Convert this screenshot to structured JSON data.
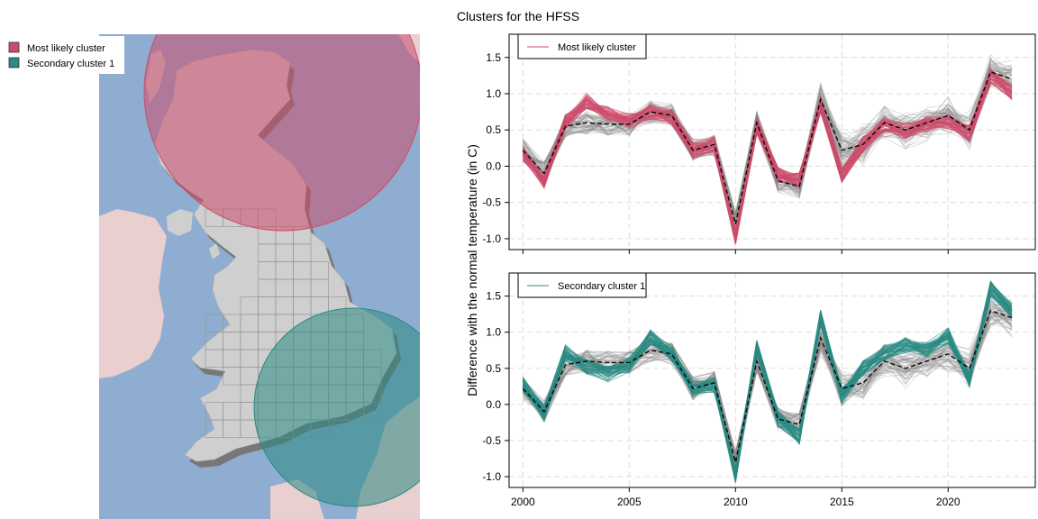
{
  "title": "Clusters for the HFSS",
  "map": {
    "legend": [
      {
        "label": "Most likely cluster",
        "color": "#cc4c6c"
      },
      {
        "label": "Secondary cluster 1",
        "color": "#2a8a84"
      }
    ],
    "colors": {
      "sea": "#8eadd0",
      "land": "#cfcfcf",
      "foreign_land": "#e9cfcf",
      "grid": "#9a9a9a"
    }
  },
  "ylabel": "Difference with the normal temperature (in C)",
  "chart_data": [
    {
      "type": "line",
      "legend": "Most likely cluster",
      "legend_position": "top-left",
      "color": "#cc4c6c",
      "background_color": "#8a8a8a",
      "x": [
        2000,
        2001,
        2002,
        2003,
        2004,
        2005,
        2006,
        2007,
        2008,
        2009,
        2010,
        2011,
        2012,
        2013,
        2014,
        2015,
        2016,
        2017,
        2018,
        2019,
        2020,
        2021,
        2022,
        2023
      ],
      "reference": [
        0.22,
        -0.1,
        0.55,
        0.6,
        0.58,
        0.58,
        0.75,
        0.7,
        0.22,
        0.3,
        -0.8,
        0.6,
        -0.2,
        -0.28,
        0.92,
        0.22,
        0.3,
        0.6,
        0.5,
        0.6,
        0.7,
        0.5,
        1.3,
        1.2
      ],
      "cluster_mean": [
        0.18,
        -0.2,
        0.6,
        0.9,
        0.72,
        0.62,
        0.75,
        0.68,
        0.22,
        0.3,
        -0.98,
        0.55,
        -0.12,
        -0.2,
        0.85,
        -0.12,
        0.3,
        0.58,
        0.48,
        0.58,
        0.62,
        0.45,
        1.25,
        1.02
      ],
      "xticks": [
        2000,
        2005,
        2010,
        2015,
        2020
      ],
      "yticks": [
        -1.0,
        -0.5,
        0.0,
        0.5,
        1.0,
        1.5
      ],
      "xlim": [
        1999.35,
        2024.1
      ],
      "ylim": [
        -1.15,
        1.82
      ],
      "grid": true
    },
    {
      "type": "line",
      "legend": "Secondary cluster 1",
      "legend_position": "top-left",
      "color": "#2a8a84",
      "background_color": "#8a8a8a",
      "x": [
        2000,
        2001,
        2002,
        2003,
        2004,
        2005,
        2006,
        2007,
        2008,
        2009,
        2010,
        2011,
        2012,
        2013,
        2014,
        2015,
        2016,
        2017,
        2018,
        2019,
        2020,
        2021,
        2022,
        2023
      ],
      "reference": [
        0.22,
        -0.1,
        0.55,
        0.6,
        0.58,
        0.58,
        0.75,
        0.7,
        0.22,
        0.3,
        -0.8,
        0.6,
        -0.2,
        -0.28,
        0.92,
        0.22,
        0.3,
        0.6,
        0.5,
        0.6,
        0.7,
        0.5,
        1.3,
        1.2
      ],
      "cluster_mean": [
        0.28,
        -0.12,
        0.72,
        0.52,
        0.42,
        0.55,
        0.92,
        0.7,
        0.22,
        0.28,
        -0.98,
        0.78,
        -0.2,
        -0.45,
        1.2,
        0.12,
        0.5,
        0.72,
        0.82,
        0.75,
        0.95,
        0.35,
        1.6,
        1.3
      ],
      "xticks": [
        2000,
        2005,
        2010,
        2015,
        2020
      ],
      "yticks": [
        -1.0,
        -0.5,
        0.0,
        0.5,
        1.0,
        1.5
      ],
      "xlim": [
        1999.35,
        2024.1
      ],
      "ylim": [
        -1.15,
        1.82
      ],
      "grid": true
    }
  ]
}
